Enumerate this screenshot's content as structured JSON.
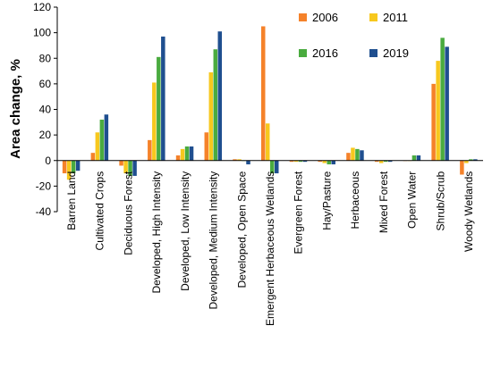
{
  "chart_data": {
    "type": "bar",
    "ylabel": "Area change, %",
    "xlabel": "",
    "ylim": [
      -40,
      120
    ],
    "yticks": [
      -40,
      -20,
      0,
      20,
      40,
      60,
      80,
      100,
      120
    ],
    "legend_position": "top-right",
    "grid": false,
    "categories": [
      "Barren Land",
      "Cultivated Crops",
      "Deciduous Forest",
      "Developed, High Intensity",
      "Developed, Low Intensity",
      "Developed, Medium Intensity",
      "Developed, Open Space",
      "Emergent Herbaceous Wetlands",
      "Evergreen Forest",
      "Hay/Pasture",
      "Herbaceous",
      "Mixed Forest",
      "Open Water",
      "Shrub/Scrub",
      "Woody Wetlands"
    ],
    "series": [
      {
        "name": "2006",
        "color": "#f5822a",
        "values": [
          -10,
          6,
          -4,
          16,
          4,
          22,
          1,
          105,
          -1,
          -1,
          6,
          -1,
          0,
          60,
          -11
        ]
      },
      {
        "name": "2011",
        "color": "#f7c81e",
        "values": [
          -15,
          22,
          -10,
          61,
          9,
          69,
          1,
          29,
          -1,
          -2,
          10,
          -2,
          0,
          78,
          -2
        ]
      },
      {
        "name": "2016",
        "color": "#4aab3f",
        "values": [
          -10,
          32,
          -12,
          81,
          11,
          87,
          0,
          -10,
          -1,
          -3,
          9,
          -1,
          4,
          96,
          1
        ]
      },
      {
        "name": "2019",
        "color": "#1f4f8f",
        "values": [
          -8,
          36,
          -12,
          97,
          11,
          101,
          -3,
          -10,
          -1,
          -3,
          8,
          -1,
          4,
          89,
          1
        ]
      }
    ]
  }
}
